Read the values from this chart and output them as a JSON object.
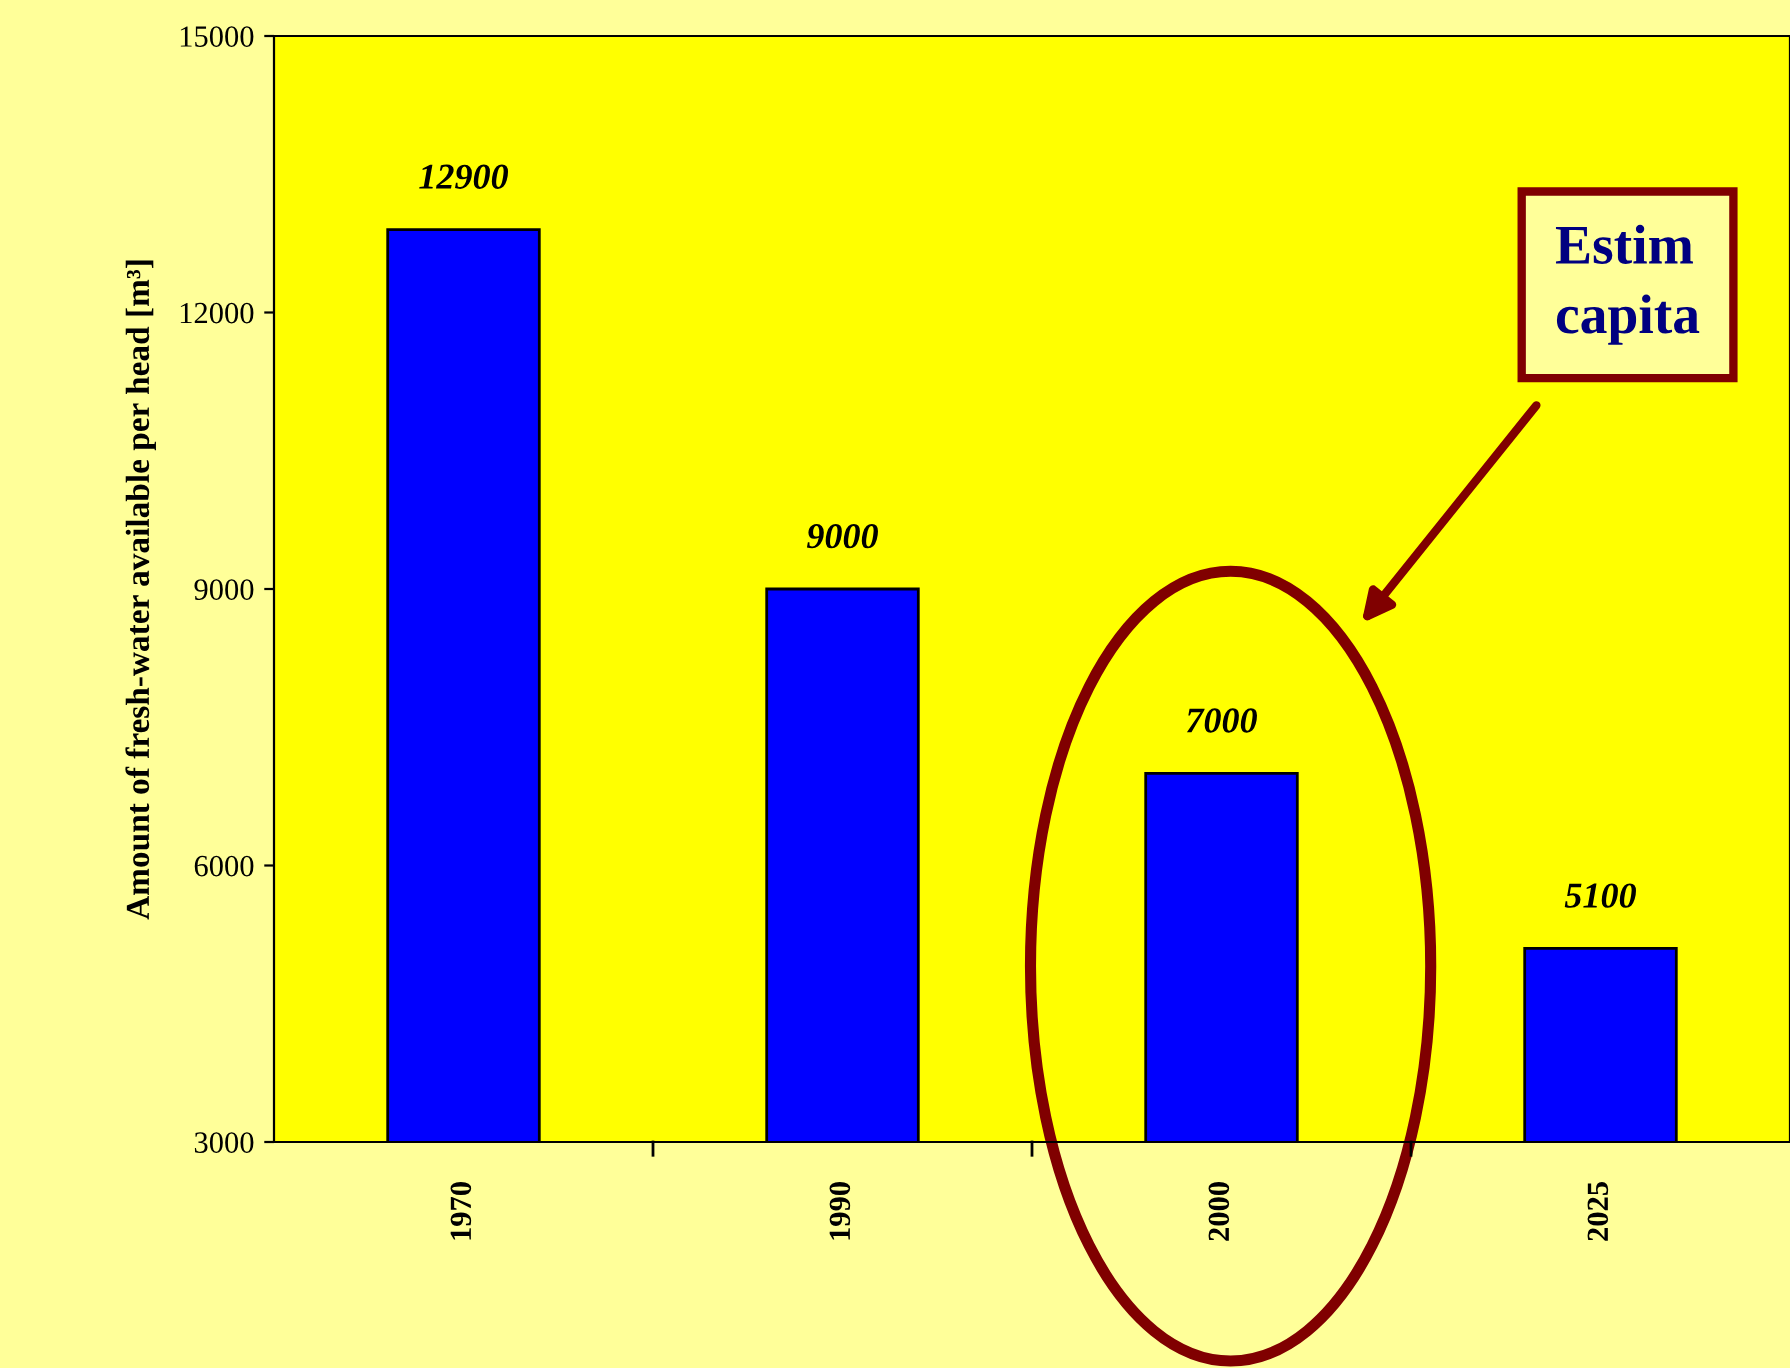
{
  "chart_data": {
    "type": "bar",
    "ylabel": "Amount of fresh-water available per head [m³]",
    "categories": [
      "1970",
      "1990",
      "2000",
      "2025"
    ],
    "values": [
      12900,
      9000,
      7000,
      5100
    ],
    "color": "#0000ff",
    "ylim": [
      3000,
      15000
    ],
    "yticks": [
      3000,
      6000,
      9000,
      12000,
      15000
    ],
    "grid": false,
    "data_labels": true,
    "annotations": [
      "Estim\ncapita"
    ]
  }
}
